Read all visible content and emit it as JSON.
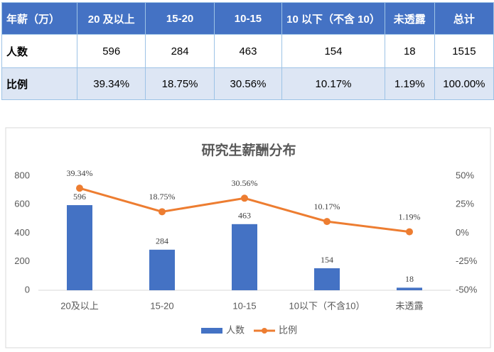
{
  "table": {
    "header": [
      "年薪（万）",
      "20 及以上",
      "15-20",
      "10-15",
      "10 以下（不含 10）",
      "未透露",
      "总计"
    ],
    "rows": [
      [
        "人数",
        "596",
        "284",
        "463",
        "154",
        "18",
        "1515"
      ],
      [
        "比例",
        "39.34%",
        "18.75%",
        "30.56%",
        "10.17%",
        "1.19%",
        "100.00%"
      ]
    ]
  },
  "chart_data": {
    "type": "combo",
    "title": "研究生薪酬分布",
    "categories": [
      "20及以上",
      "15-20",
      "10-15",
      "10以下（不含10）",
      "未透露"
    ],
    "series": [
      {
        "name": "人数",
        "type": "bar",
        "color": "#4472c4",
        "values": [
          596,
          284,
          463,
          154,
          18
        ]
      },
      {
        "name": "比例",
        "type": "line",
        "axis": "y2",
        "color": "#ed7d31",
        "values": [
          39.34,
          18.75,
          30.56,
          10.17,
          1.19
        ],
        "value_labels": [
          "39.34%",
          "18.75%",
          "30.56%",
          "10.17%",
          "1.19%"
        ]
      }
    ],
    "ylim": [
      0,
      800
    ],
    "yticks": [
      0,
      200,
      400,
      600,
      800
    ],
    "y2lim": [
      -50,
      50
    ],
    "y2ticks": [
      {
        "value": -50,
        "label": "-50%"
      },
      {
        "value": -25,
        "label": "-25%"
      },
      {
        "value": 0,
        "label": "0%"
      },
      {
        "value": 25,
        "label": "25%"
      },
      {
        "value": 50,
        "label": "50%"
      }
    ],
    "grid": false,
    "legend": "bottom"
  }
}
